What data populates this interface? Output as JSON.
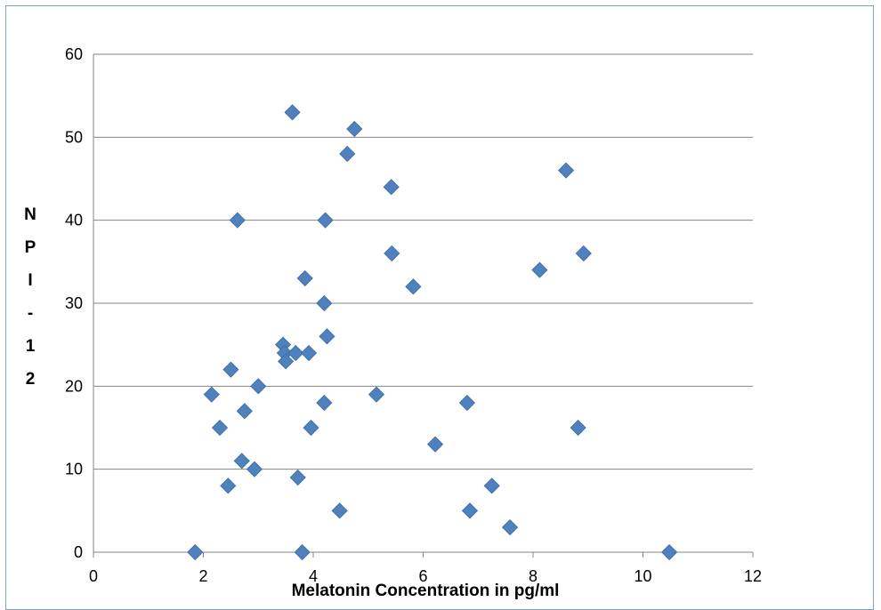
{
  "chart_data": {
    "type": "scatter",
    "title": "",
    "xlabel": "Melatonin Concentration in pg/ml",
    "ylabel_chars": [
      "N",
      "P",
      "I",
      "-",
      "1",
      "2"
    ],
    "xlim": [
      0,
      12
    ],
    "ylim": [
      0,
      60
    ],
    "x_ticks": [
      "0",
      "2",
      "4",
      "6",
      "8",
      "10",
      "12"
    ],
    "y_ticks": [
      "0",
      "10",
      "20",
      "30",
      "40",
      "50",
      "60"
    ],
    "grid": "horizontal",
    "legend": "none",
    "marker": "diamond",
    "marker_color": "#4f81bd",
    "x": [
      1.85,
      2.15,
      2.3,
      2.45,
      2.5,
      2.62,
      2.7,
      2.75,
      2.93,
      3.0,
      3.45,
      3.48,
      3.5,
      3.62,
      3.68,
      3.72,
      3.8,
      3.85,
      3.92,
      3.96,
      4.2,
      4.2,
      4.22,
      4.25,
      4.48,
      4.62,
      4.75,
      5.15,
      5.42,
      5.43,
      5.82,
      6.22,
      6.8,
      6.85,
      7.25,
      7.58,
      8.12,
      8.6,
      8.82,
      8.92,
      10.48
    ],
    "y": [
      0,
      19,
      15,
      8,
      22,
      40,
      11,
      17,
      10,
      20,
      25,
      24,
      23,
      53,
      24,
      9,
      0,
      33,
      24,
      15,
      30,
      18,
      40,
      26,
      5,
      48,
      51,
      19,
      44,
      36,
      32,
      13,
      18,
      5,
      8,
      3,
      34,
      46,
      15,
      36,
      0
    ]
  }
}
